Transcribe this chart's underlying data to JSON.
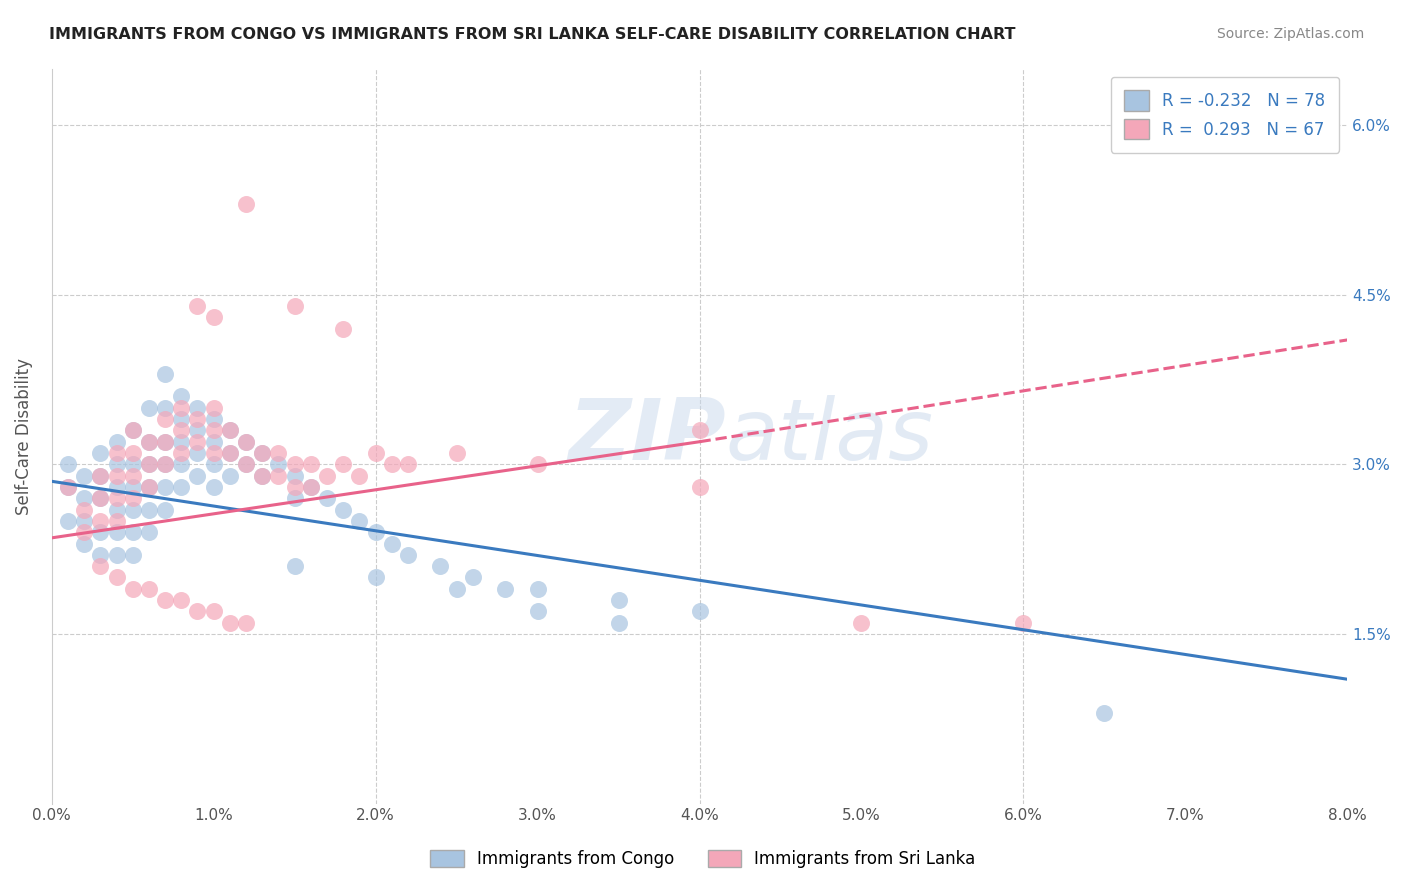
{
  "title": "IMMIGRANTS FROM CONGO VS IMMIGRANTS FROM SRI LANKA SELF-CARE DISABILITY CORRELATION CHART",
  "source": "Source: ZipAtlas.com",
  "ylabel": "Self-Care Disability",
  "ytick_labels": [
    "6.0%",
    "4.5%",
    "3.0%",
    "1.5%"
  ],
  "ytick_values": [
    0.06,
    0.045,
    0.03,
    0.015
  ],
  "xlim": [
    0.0,
    0.08
  ],
  "ylim": [
    0.0,
    0.065
  ],
  "congo_color": "#a8c4e0",
  "srilanka_color": "#f4a7b9",
  "congo_line_color": "#3a7abf",
  "srilanka_line_color": "#e8628a",
  "watermark_zip": "ZIP",
  "watermark_atlas": "atlas",
  "R_congo": -0.232,
  "N_congo": 78,
  "R_srilanka": 0.293,
  "N_srilanka": 67,
  "congo_trendline": [
    [
      0.0,
      0.0285
    ],
    [
      0.08,
      0.011
    ]
  ],
  "srilanka_trendline_solid": [
    [
      0.0,
      0.0235
    ],
    [
      0.04,
      0.032
    ]
  ],
  "srilanka_trendline_dashed": [
    [
      0.04,
      0.032
    ],
    [
      0.08,
      0.041
    ]
  ],
  "congo_scatter": [
    [
      0.001,
      0.03
    ],
    [
      0.001,
      0.028
    ],
    [
      0.001,
      0.025
    ],
    [
      0.002,
      0.029
    ],
    [
      0.002,
      0.027
    ],
    [
      0.002,
      0.025
    ],
    [
      0.002,
      0.023
    ],
    [
      0.003,
      0.031
    ],
    [
      0.003,
      0.029
    ],
    [
      0.003,
      0.027
    ],
    [
      0.003,
      0.024
    ],
    [
      0.003,
      0.022
    ],
    [
      0.004,
      0.032
    ],
    [
      0.004,
      0.03
    ],
    [
      0.004,
      0.028
    ],
    [
      0.004,
      0.026
    ],
    [
      0.004,
      0.024
    ],
    [
      0.004,
      0.022
    ],
    [
      0.005,
      0.033
    ],
    [
      0.005,
      0.03
    ],
    [
      0.005,
      0.028
    ],
    [
      0.005,
      0.026
    ],
    [
      0.005,
      0.024
    ],
    [
      0.005,
      0.022
    ],
    [
      0.006,
      0.035
    ],
    [
      0.006,
      0.032
    ],
    [
      0.006,
      0.03
    ],
    [
      0.006,
      0.028
    ],
    [
      0.006,
      0.026
    ],
    [
      0.006,
      0.024
    ],
    [
      0.007,
      0.038
    ],
    [
      0.007,
      0.035
    ],
    [
      0.007,
      0.032
    ],
    [
      0.007,
      0.03
    ],
    [
      0.007,
      0.028
    ],
    [
      0.007,
      0.026
    ],
    [
      0.008,
      0.036
    ],
    [
      0.008,
      0.034
    ],
    [
      0.008,
      0.032
    ],
    [
      0.008,
      0.03
    ],
    [
      0.008,
      0.028
    ],
    [
      0.009,
      0.035
    ],
    [
      0.009,
      0.033
    ],
    [
      0.009,
      0.031
    ],
    [
      0.009,
      0.029
    ],
    [
      0.01,
      0.034
    ],
    [
      0.01,
      0.032
    ],
    [
      0.01,
      0.03
    ],
    [
      0.01,
      0.028
    ],
    [
      0.011,
      0.033
    ],
    [
      0.011,
      0.031
    ],
    [
      0.011,
      0.029
    ],
    [
      0.012,
      0.032
    ],
    [
      0.012,
      0.03
    ],
    [
      0.013,
      0.031
    ],
    [
      0.013,
      0.029
    ],
    [
      0.014,
      0.03
    ],
    [
      0.015,
      0.029
    ],
    [
      0.015,
      0.027
    ],
    [
      0.016,
      0.028
    ],
    [
      0.017,
      0.027
    ],
    [
      0.018,
      0.026
    ],
    [
      0.019,
      0.025
    ],
    [
      0.02,
      0.024
    ],
    [
      0.021,
      0.023
    ],
    [
      0.022,
      0.022
    ],
    [
      0.024,
      0.021
    ],
    [
      0.026,
      0.02
    ],
    [
      0.028,
      0.019
    ],
    [
      0.03,
      0.019
    ],
    [
      0.035,
      0.018
    ],
    [
      0.04,
      0.017
    ],
    [
      0.015,
      0.021
    ],
    [
      0.02,
      0.02
    ],
    [
      0.025,
      0.019
    ],
    [
      0.03,
      0.017
    ],
    [
      0.035,
      0.016
    ],
    [
      0.065,
      0.008
    ]
  ],
  "srilanka_scatter": [
    [
      0.001,
      0.028
    ],
    [
      0.002,
      0.026
    ],
    [
      0.002,
      0.024
    ],
    [
      0.003,
      0.029
    ],
    [
      0.003,
      0.027
    ],
    [
      0.003,
      0.025
    ],
    [
      0.004,
      0.031
    ],
    [
      0.004,
      0.029
    ],
    [
      0.004,
      0.027
    ],
    [
      0.004,
      0.025
    ],
    [
      0.005,
      0.033
    ],
    [
      0.005,
      0.031
    ],
    [
      0.005,
      0.029
    ],
    [
      0.005,
      0.027
    ],
    [
      0.006,
      0.032
    ],
    [
      0.006,
      0.03
    ],
    [
      0.006,
      0.028
    ],
    [
      0.007,
      0.034
    ],
    [
      0.007,
      0.032
    ],
    [
      0.007,
      0.03
    ],
    [
      0.008,
      0.035
    ],
    [
      0.008,
      0.033
    ],
    [
      0.008,
      0.031
    ],
    [
      0.009,
      0.034
    ],
    [
      0.009,
      0.032
    ],
    [
      0.01,
      0.035
    ],
    [
      0.01,
      0.033
    ],
    [
      0.01,
      0.031
    ],
    [
      0.011,
      0.033
    ],
    [
      0.011,
      0.031
    ],
    [
      0.012,
      0.032
    ],
    [
      0.012,
      0.03
    ],
    [
      0.013,
      0.031
    ],
    [
      0.013,
      0.029
    ],
    [
      0.014,
      0.031
    ],
    [
      0.014,
      0.029
    ],
    [
      0.015,
      0.03
    ],
    [
      0.015,
      0.028
    ],
    [
      0.016,
      0.03
    ],
    [
      0.016,
      0.028
    ],
    [
      0.017,
      0.029
    ],
    [
      0.018,
      0.03
    ],
    [
      0.019,
      0.029
    ],
    [
      0.02,
      0.031
    ],
    [
      0.021,
      0.03
    ],
    [
      0.022,
      0.03
    ],
    [
      0.003,
      0.021
    ],
    [
      0.004,
      0.02
    ],
    [
      0.005,
      0.019
    ],
    [
      0.006,
      0.019
    ],
    [
      0.007,
      0.018
    ],
    [
      0.008,
      0.018
    ],
    [
      0.009,
      0.017
    ],
    [
      0.01,
      0.017
    ],
    [
      0.011,
      0.016
    ],
    [
      0.012,
      0.016
    ],
    [
      0.009,
      0.044
    ],
    [
      0.01,
      0.043
    ],
    [
      0.015,
      0.044
    ],
    [
      0.018,
      0.042
    ],
    [
      0.025,
      0.031
    ],
    [
      0.03,
      0.03
    ],
    [
      0.04,
      0.033
    ],
    [
      0.05,
      0.016
    ],
    [
      0.06,
      0.016
    ],
    [
      0.04,
      0.028
    ],
    [
      0.012,
      0.053
    ]
  ]
}
